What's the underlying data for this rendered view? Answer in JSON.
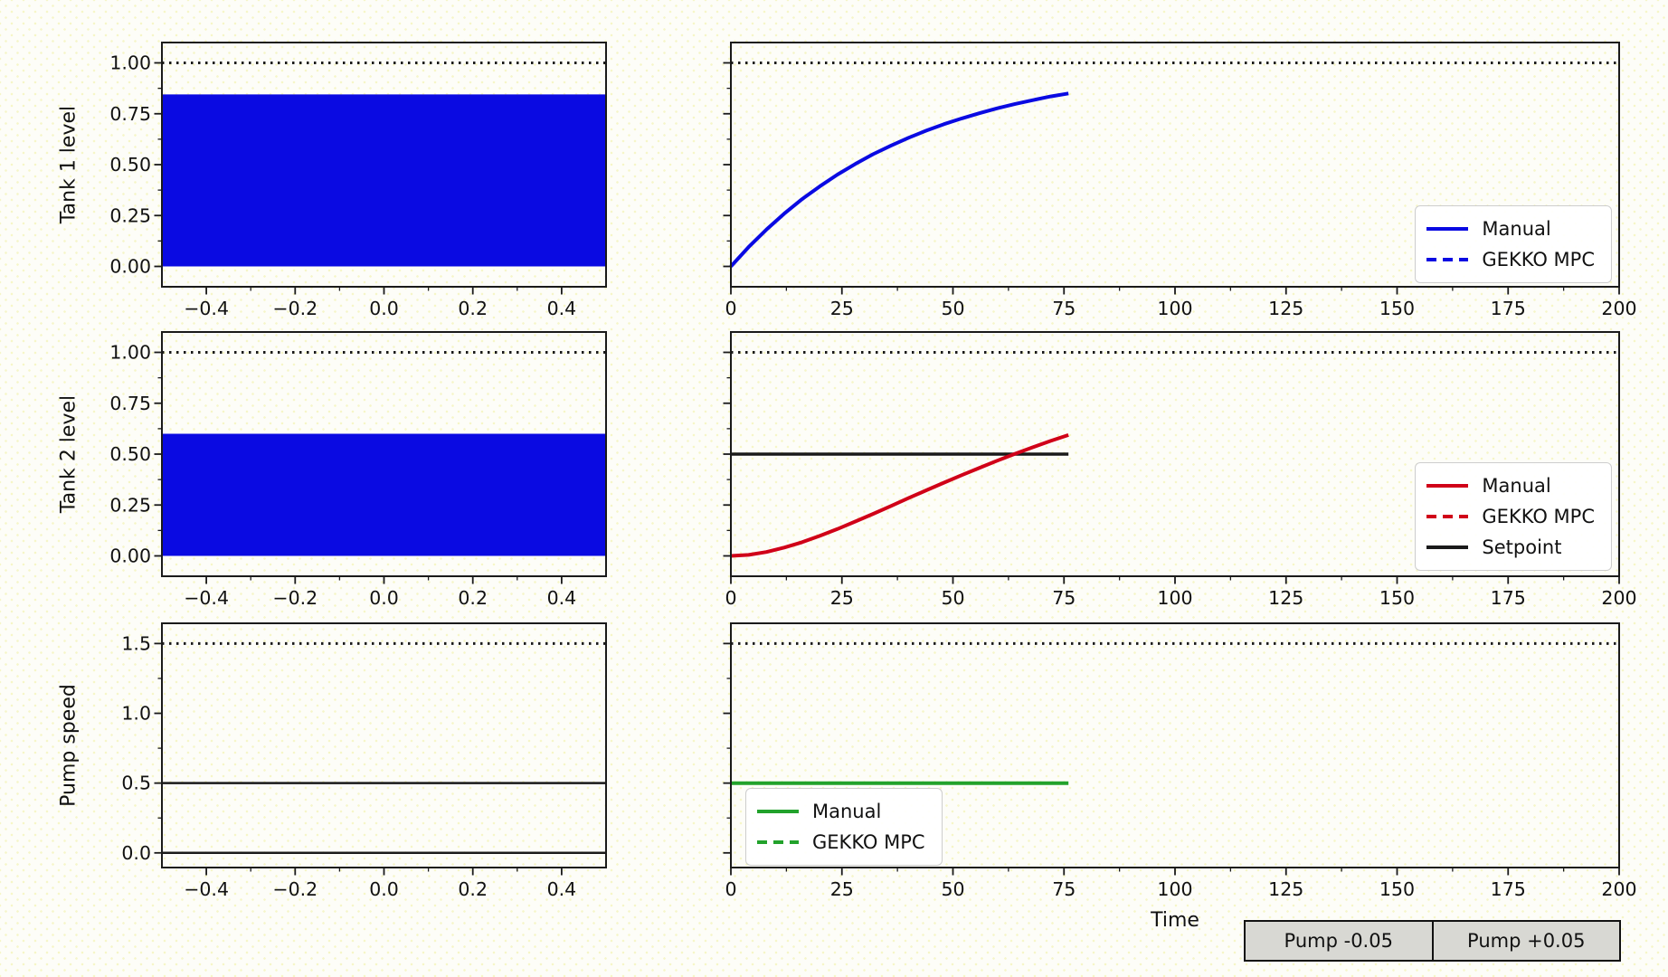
{
  "colors": {
    "blue": "#0a0ae2",
    "red": "#d00018",
    "green": "#22a22b",
    "black": "#1a1a1a",
    "button_face": "#d8d8d3",
    "background": "#fdfdf8"
  },
  "xlabel": "Time",
  "controls": {
    "pump_minus_label": "Pump -0.05",
    "pump_plus_label": "Pump +0.05"
  },
  "chart_data": [
    {
      "id": "tank1-state",
      "type": "area",
      "ylabel": "Tank 1 level",
      "xlim": [
        -0.5,
        0.5
      ],
      "ylim": [
        -0.1,
        1.1
      ],
      "xticks": [
        -0.4,
        -0.2,
        0.0,
        0.2,
        0.4
      ],
      "xtick_labels": [
        "−0.4",
        "−0.2",
        "0.0",
        "0.2",
        "0.4"
      ],
      "yticks": [
        0.0,
        0.25,
        0.5,
        0.75,
        1.0
      ],
      "ytick_labels": [
        "0.00",
        "0.25",
        "0.50",
        "0.75",
        "1.00"
      ],
      "constraint": {
        "y": 1.0,
        "style": "dotted",
        "color": "black"
      },
      "fill": {
        "y0": 0.0,
        "y1": 0.845,
        "color": "blue"
      },
      "current_level": 0.845
    },
    {
      "id": "tank1-time",
      "type": "line",
      "xlim": [
        0,
        200
      ],
      "ylim": [
        -0.1,
        1.1
      ],
      "xticks": [
        0,
        25,
        50,
        75,
        100,
        125,
        150,
        175,
        200
      ],
      "xtick_labels": [
        "0",
        "25",
        "50",
        "75",
        "100",
        "125",
        "150",
        "175",
        "200"
      ],
      "yticks": [
        0.0,
        0.25,
        0.5,
        0.75,
        1.0
      ],
      "constraint": {
        "y": 1.0,
        "style": "dotted",
        "color": "black"
      },
      "series": [
        {
          "name": "Manual",
          "color": "blue",
          "dash": "solid",
          "x": [
            0,
            4,
            8,
            12,
            16,
            20,
            24,
            28,
            32,
            36,
            40,
            44,
            48,
            52,
            56,
            60,
            64,
            68,
            72,
            76
          ],
          "y": [
            0.0,
            0.095,
            0.181,
            0.259,
            0.33,
            0.393,
            0.451,
            0.503,
            0.551,
            0.593,
            0.632,
            0.667,
            0.699,
            0.727,
            0.753,
            0.777,
            0.798,
            0.817,
            0.835,
            0.85
          ]
        }
      ],
      "legend": {
        "location": "right",
        "entries": [
          {
            "label": "Manual",
            "color": "blue",
            "dash": "solid"
          },
          {
            "label": "GEKKO MPC",
            "color": "blue",
            "dash": "dashed"
          }
        ]
      }
    },
    {
      "id": "tank2-state",
      "type": "area",
      "ylabel": "Tank 2 level",
      "xlim": [
        -0.5,
        0.5
      ],
      "ylim": [
        -0.1,
        1.1
      ],
      "xticks": [
        -0.4,
        -0.2,
        0.0,
        0.2,
        0.4
      ],
      "xtick_labels": [
        "−0.4",
        "−0.2",
        "0.0",
        "0.2",
        "0.4"
      ],
      "yticks": [
        0.0,
        0.25,
        0.5,
        0.75,
        1.0
      ],
      "ytick_labels": [
        "0.00",
        "0.25",
        "0.50",
        "0.75",
        "1.00"
      ],
      "constraint": {
        "y": 1.0,
        "style": "dotted",
        "color": "black"
      },
      "fill": {
        "y0": 0.0,
        "y1": 0.6,
        "color": "blue"
      },
      "current_level": 0.6
    },
    {
      "id": "tank2-time",
      "type": "line",
      "xlim": [
        0,
        200
      ],
      "ylim": [
        -0.1,
        1.1
      ],
      "xticks": [
        0,
        25,
        50,
        75,
        100,
        125,
        150,
        175,
        200
      ],
      "xtick_labels": [
        "0",
        "25",
        "50",
        "75",
        "100",
        "125",
        "150",
        "175",
        "200"
      ],
      "yticks": [
        0.0,
        0.25,
        0.5,
        0.75,
        1.0
      ],
      "constraint": {
        "y": 1.0,
        "style": "dotted",
        "color": "black"
      },
      "series": [
        {
          "name": "Setpoint",
          "color": "black",
          "dash": "solid",
          "x": [
            0,
            76
          ],
          "y": [
            0.5,
            0.5
          ]
        },
        {
          "name": "Manual",
          "color": "red",
          "dash": "solid",
          "x": [
            0,
            4,
            8,
            12,
            16,
            20,
            24,
            28,
            32,
            36,
            40,
            44,
            48,
            52,
            56,
            60,
            64,
            68,
            72,
            76
          ],
          "y": [
            0.0,
            0.005,
            0.019,
            0.041,
            0.067,
            0.098,
            0.132,
            0.169,
            0.206,
            0.245,
            0.284,
            0.322,
            0.36,
            0.397,
            0.433,
            0.468,
            0.502,
            0.534,
            0.565,
            0.594
          ]
        }
      ],
      "legend": {
        "location": "right",
        "entries": [
          {
            "label": "Manual",
            "color": "red",
            "dash": "solid"
          },
          {
            "label": "GEKKO MPC",
            "color": "red",
            "dash": "dashed"
          },
          {
            "label": "Setpoint",
            "color": "black",
            "dash": "solid"
          }
        ]
      }
    },
    {
      "id": "pump-state",
      "type": "line",
      "ylabel": "Pump speed",
      "xlim": [
        -0.5,
        0.5
      ],
      "ylim": [
        -0.105,
        1.645
      ],
      "xticks": [
        -0.4,
        -0.2,
        0.0,
        0.2,
        0.4
      ],
      "xtick_labels": [
        "−0.4",
        "−0.2",
        "0.0",
        "0.2",
        "0.4"
      ],
      "yticks": [
        0.0,
        0.5,
        1.0,
        1.5
      ],
      "ytick_labels": [
        "0.0",
        "0.5",
        "1.0",
        "1.5"
      ],
      "constraint": {
        "y": 1.5,
        "style": "dotted",
        "color": "black"
      },
      "hlines": [
        {
          "y": 0.5,
          "color": "black"
        },
        {
          "y": 0.0,
          "color": "black"
        }
      ],
      "current_level": 0.5
    },
    {
      "id": "pump-time",
      "type": "line",
      "xlabel": "Time",
      "xlim": [
        0,
        200
      ],
      "ylim": [
        -0.105,
        1.645
      ],
      "xticks": [
        0,
        25,
        50,
        75,
        100,
        125,
        150,
        175,
        200
      ],
      "xtick_labels": [
        "0",
        "25",
        "50",
        "75",
        "100",
        "125",
        "150",
        "175",
        "200"
      ],
      "yticks": [
        0.0,
        0.5,
        1.0,
        1.5
      ],
      "constraint": {
        "y": 1.5,
        "style": "dotted",
        "color": "black"
      },
      "series": [
        {
          "name": "Manual",
          "color": "green",
          "dash": "solid",
          "x": [
            0,
            76
          ],
          "y": [
            0.5,
            0.5
          ]
        }
      ],
      "legend": {
        "location": "lower-left",
        "entries": [
          {
            "label": "Manual",
            "color": "green",
            "dash": "solid"
          },
          {
            "label": "GEKKO MPC",
            "color": "green",
            "dash": "dashed"
          }
        ]
      }
    }
  ]
}
